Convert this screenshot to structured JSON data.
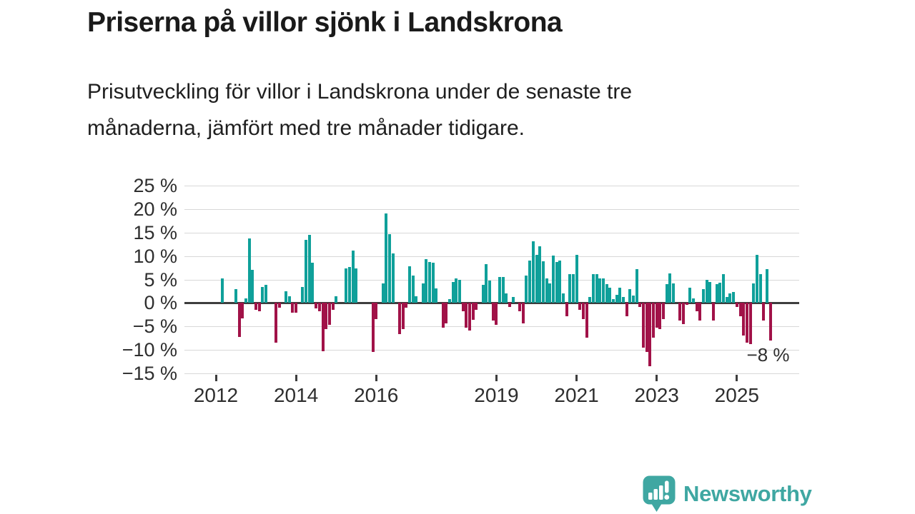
{
  "title": "Priserna på villor sjönk i Landskrona",
  "subtitle": "Prisutveckling för villor i Landskrona under de senaste tre månaderna, jämfört med tre månader tidigare.",
  "branding": {
    "name": "Newsworthy",
    "icon": "newsworthy-speech-bubble-chart"
  },
  "colors": {
    "positive": "#0fa09a",
    "negative": "#a11248",
    "grid": "#d8d8d8",
    "zero_line": "#3d3d3d",
    "text": "#1a1a1a",
    "axis_text": "#2e2e2e",
    "brand": "#3fa7a2"
  },
  "chart_data": {
    "type": "bar",
    "title": "",
    "xlabel": "",
    "ylabel": "",
    "unit": "%",
    "frequency": "monthly",
    "start_month": "2012-02",
    "end_month": "2025-11",
    "ylim": [
      -15,
      25
    ],
    "grid": true,
    "y_ticks": [
      {
        "value": 25,
        "label": "25 %"
      },
      {
        "value": 20,
        "label": "20 %"
      },
      {
        "value": 15,
        "label": "15 %"
      },
      {
        "value": 10,
        "label": "10 %"
      },
      {
        "value": 5,
        "label": "5 %"
      },
      {
        "value": 0,
        "label": "0 %"
      },
      {
        "value": -5,
        "label": "−5 %"
      },
      {
        "value": -10,
        "label": "−10 %"
      },
      {
        "value": -15,
        "label": "−15 %"
      }
    ],
    "x_ticks": [
      {
        "year": 2012,
        "label": "2012"
      },
      {
        "year": 2014,
        "label": "2014"
      },
      {
        "year": 2016,
        "label": "2016"
      },
      {
        "year": 2019,
        "label": "2019"
      },
      {
        "year": 2021,
        "label": "2021"
      },
      {
        "year": 2023,
        "label": "2023"
      },
      {
        "year": 2025,
        "label": "2025"
      }
    ],
    "annotation": {
      "label": "−8 %",
      "month": "2025-11",
      "value": -8
    },
    "values": [
      0,
      5.3,
      0,
      0,
      0,
      2.9,
      -7.2,
      -3.3,
      0.9,
      13.7,
      7.0,
      -1.5,
      -1.8,
      3.4,
      3.8,
      0,
      0,
      -8.5,
      -1.0,
      0,
      2.5,
      1.5,
      -2.0,
      -2.0,
      0,
      3.4,
      13.5,
      14.5,
      8.6,
      -1.2,
      -1.8,
      -10.3,
      -5.6,
      -4.6,
      -1.5,
      1.5,
      0,
      0,
      7.3,
      7.7,
      11.2,
      7.4,
      0,
      0,
      0,
      0,
      -10.4,
      -3.4,
      0,
      4.2,
      19.0,
      14.6,
      10.5,
      0,
      -6.7,
      -5.5,
      -1.0,
      7.8,
      5.8,
      1.4,
      0,
      4.1,
      9.4,
      8.7,
      8.6,
      3.1,
      0,
      -5.3,
      -4.3,
      0.8,
      4.4,
      5.2,
      5.0,
      -1.8,
      -5.3,
      -5.8,
      -3.6,
      -1.4,
      0,
      3.9,
      8.2,
      4.7,
      -3.8,
      -4.7,
      5.6,
      5.6,
      2.1,
      -0.8,
      1.2,
      0,
      -1.7,
      -4.4,
      5.9,
      9.1,
      13.2,
      10.2,
      12.1,
      8.9,
      5.2,
      4.1,
      10.1,
      8.8,
      9.1,
      2.1,
      -2.9,
      6.2,
      6.2,
      10.3,
      -1.4,
      -3.4,
      -7.4,
      1.2,
      6.2,
      6.2,
      5.2,
      5.2,
      4.0,
      3.2,
      0.8,
      1.7,
      3.2,
      1.2,
      -2.8,
      2.9,
      1.6,
      7.2,
      -0.9,
      -9.5,
      -10.4,
      -13.5,
      -7.4,
      -5.3,
      -5.6,
      -3.4,
      4.0,
      6.3,
      4.1,
      0,
      -3.7,
      -4.5,
      -0.4,
      3.2,
      0.9,
      -1.8,
      -3.7,
      2.9,
      4.9,
      4.4,
      -3.8,
      4.0,
      4.3,
      6.1,
      1.2,
      2.1,
      2.4,
      -0.8,
      -2.8,
      -6.9,
      -8.4,
      -8.7,
      4.1,
      10.3,
      6.2,
      -3.7,
      7.2,
      -8.0
    ]
  }
}
